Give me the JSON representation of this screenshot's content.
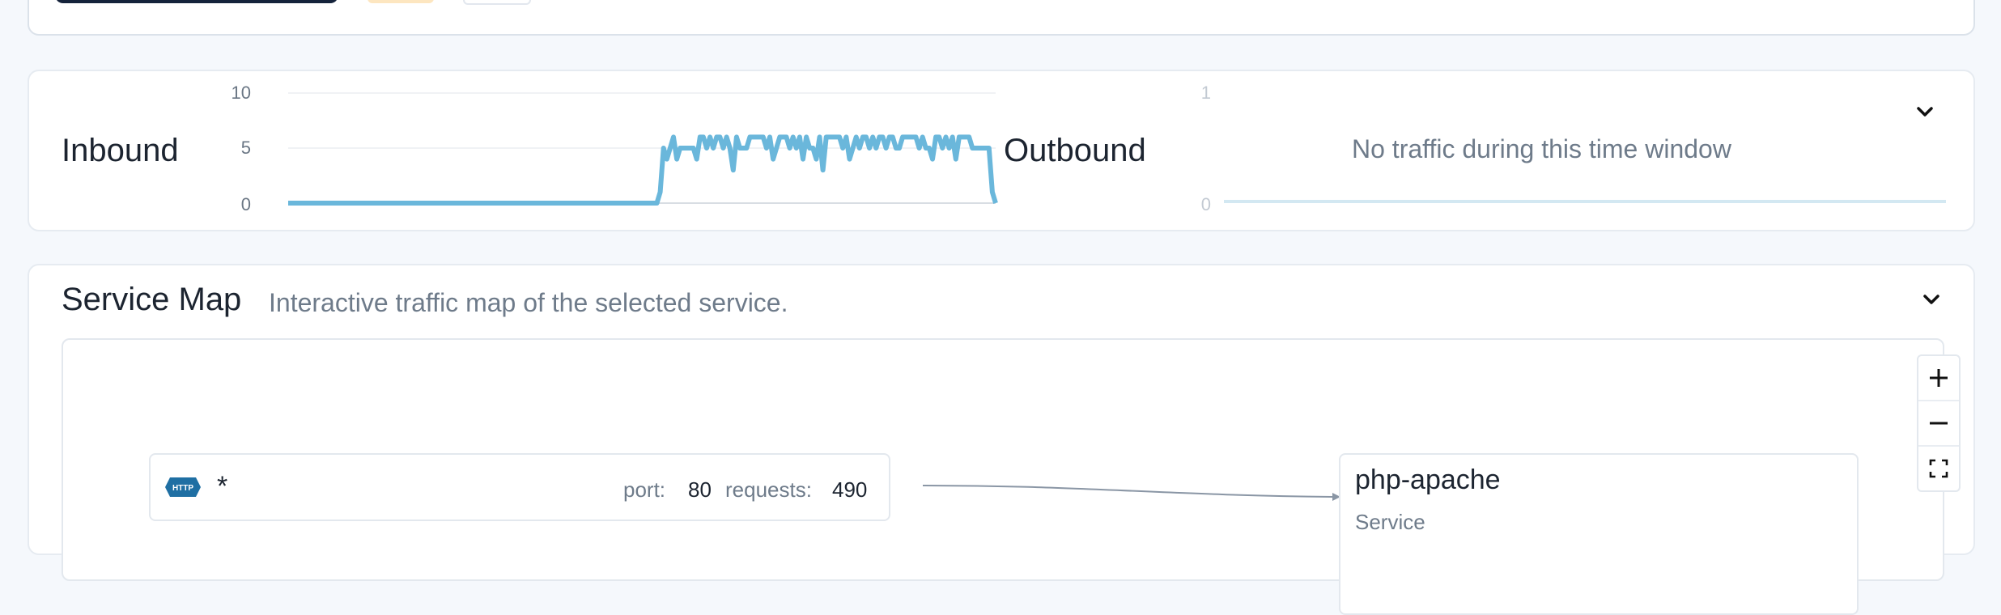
{
  "traffic": {
    "inbound": {
      "title": "Inbound",
      "yticks": [
        "10",
        "5",
        "0"
      ],
      "line_color": "#6ab7db"
    },
    "outbound": {
      "title": "Outbound",
      "yticks": [
        "1",
        "0"
      ],
      "empty_message": "No traffic during this time window"
    },
    "collapse_icon": "chevron-down-icon"
  },
  "service_map": {
    "title": "Service Map",
    "subtitle": "Interactive traffic map of the selected service.",
    "collapse_icon": "chevron-down-icon",
    "zoom_controls": [
      "+",
      "−",
      "fit"
    ],
    "edge_node": {
      "protocol": "HTTP",
      "source": "*",
      "port_label": "port:",
      "port": "80",
      "requests_label": "requests:",
      "requests": "490"
    },
    "service_node": {
      "name": "php-apache",
      "kind": "Service"
    }
  },
  "chart_data": {
    "type": "line",
    "title": "Inbound",
    "ylim": [
      0,
      10
    ],
    "yticks": [
      0,
      5,
      10
    ],
    "series": [
      {
        "values": [
          0,
          0,
          0,
          0,
          0,
          0,
          0,
          0,
          0,
          0,
          0,
          0,
          0,
          0,
          0,
          0,
          0,
          0,
          0,
          0,
          0,
          0,
          0,
          0,
          0,
          0,
          0,
          0,
          0,
          0,
          0,
          0,
          0,
          0,
          0,
          0,
          0,
          0,
          0,
          0,
          0,
          0,
          0,
          0,
          0,
          0,
          0,
          0,
          0,
          0,
          0,
          0,
          0,
          0,
          0,
          0,
          0,
          0,
          0,
          0,
          0,
          0,
          0,
          0,
          0,
          0,
          0,
          0,
          0,
          0,
          0,
          0,
          0,
          0,
          0,
          0,
          0,
          0,
          0,
          0,
          0,
          0,
          0,
          0,
          0,
          0,
          0,
          0,
          0,
          0,
          0,
          0,
          0,
          0,
          0,
          0,
          0,
          0,
          0,
          0,
          0,
          0,
          0,
          0,
          0,
          0,
          0,
          0,
          0,
          0,
          0,
          0,
          1,
          5,
          4,
          5,
          6,
          4,
          5,
          5,
          5,
          5,
          5,
          4,
          6,
          6,
          5,
          6,
          5,
          6,
          6,
          5,
          6,
          5,
          3,
          6,
          5,
          5,
          5,
          6,
          6,
          6,
          6,
          6,
          5,
          6,
          4,
          5,
          6,
          6,
          6,
          5,
          6,
          5,
          6,
          4,
          6,
          5,
          5,
          4,
          6,
          3,
          6,
          6,
          6,
          6,
          6,
          5,
          6,
          4,
          5,
          6,
          5,
          6,
          6,
          5,
          6,
          5,
          6,
          6,
          5,
          6,
          6,
          5,
          5,
          6,
          6,
          6,
          6,
          6,
          5,
          6,
          5,
          5,
          4,
          6,
          6,
          5,
          6,
          5,
          6,
          4,
          6,
          6,
          6,
          6,
          5,
          5,
          5,
          5,
          5,
          5,
          1,
          0
        ]
      }
    ]
  }
}
